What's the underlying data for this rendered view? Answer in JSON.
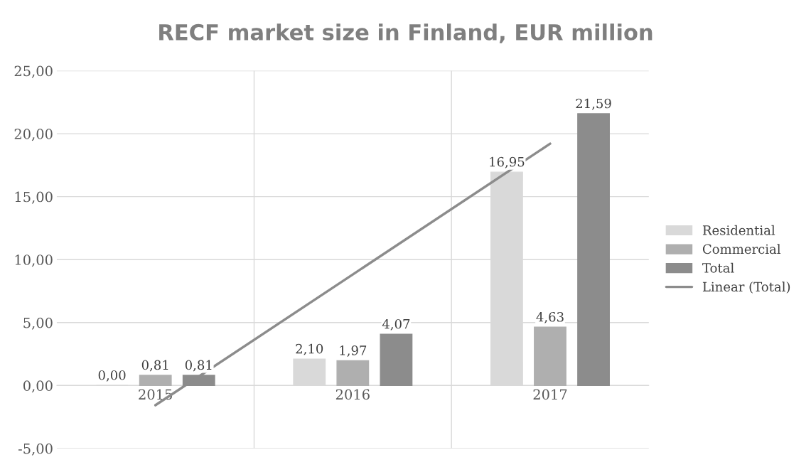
{
  "chart_data": {
    "type": "bar",
    "title": "RECF market size in Finland, EUR million",
    "categories": [
      "2015",
      "2016",
      "2017"
    ],
    "series": [
      {
        "name": "Residential",
        "color": "#d9d9d9",
        "values": [
          0.0,
          2.1,
          16.95
        ],
        "value_labels": [
          "0,00",
          "2,10",
          "16,95"
        ]
      },
      {
        "name": "Commercial",
        "color": "#afafaf",
        "values": [
          0.81,
          1.97,
          4.63
        ],
        "value_labels": [
          "0,81",
          "1,97",
          "4,63"
        ]
      },
      {
        "name": "Total",
        "color": "#8c8c8c",
        "values": [
          0.81,
          4.07,
          21.59
        ],
        "value_labels": [
          "0,81",
          "4,07",
          "21,59"
        ]
      },
      {
        "name": "Linear (Total)",
        "type": "line",
        "color": "#8c8c8c",
        "values": [
          -1.57,
          8.82,
          19.21
        ]
      }
    ],
    "ylim": [
      -5,
      25
    ],
    "yticks": [
      {
        "value": -5,
        "label": "-5,00"
      },
      {
        "value": 0,
        "label": "0,00"
      },
      {
        "value": 5,
        "label": "5,00"
      },
      {
        "value": 10,
        "label": "10,00"
      },
      {
        "value": 15,
        "label": "15,00"
      },
      {
        "value": 20,
        "label": "20,00"
      },
      {
        "value": 25,
        "label": "25,00"
      }
    ],
    "grid": true,
    "legend": "right"
  }
}
